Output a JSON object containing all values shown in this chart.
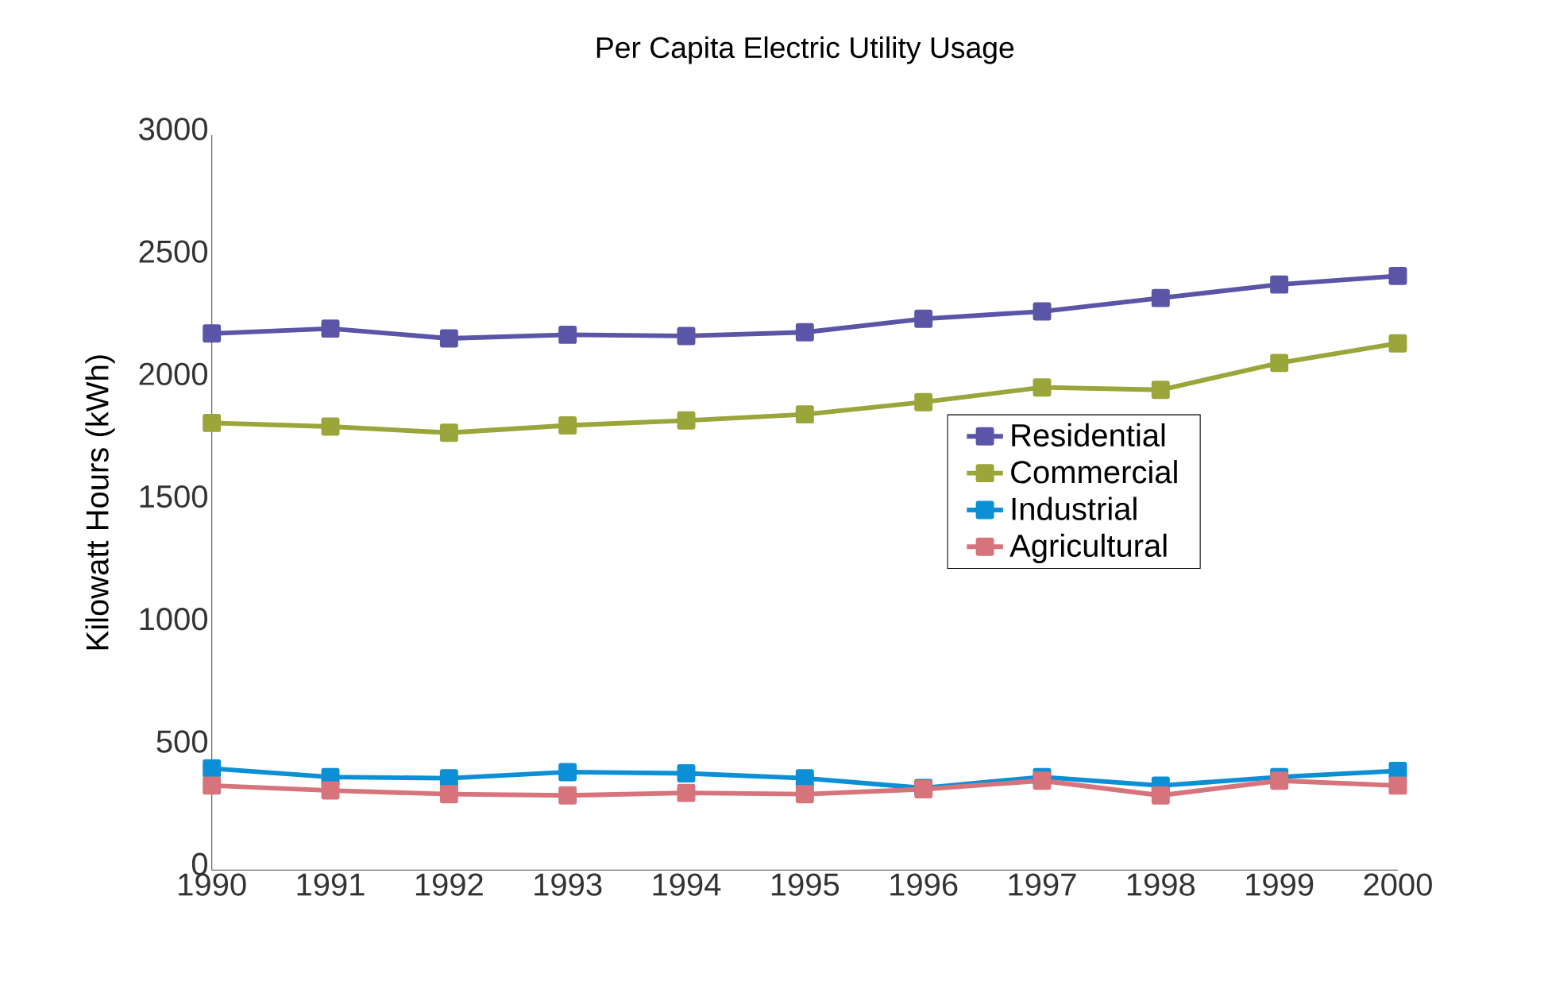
{
  "chart_data": {
    "type": "line",
    "title": "Per Capita Electric Utility Usage",
    "ylabel": "Kilowatt Hours (kWh)",
    "x": [
      1990,
      1991,
      1992,
      1993,
      1994,
      1995,
      1996,
      1997,
      1998,
      1999,
      2000
    ],
    "series": [
      {
        "name": "Residential",
        "color": "#5b55a8",
        "values": [
          2190,
          2210,
          2170,
          2185,
          2180,
          2195,
          2250,
          2280,
          2335,
          2390,
          2425
        ]
      },
      {
        "name": "Commercial",
        "color": "#9aa53a",
        "values": [
          1825,
          1810,
          1785,
          1815,
          1835,
          1860,
          1910,
          1970,
          1960,
          2070,
          2150
        ]
      },
      {
        "name": "Industrial",
        "color": "#0d8fd6",
        "values": [
          415,
          380,
          375,
          400,
          395,
          375,
          335,
          380,
          345,
          380,
          405
        ]
      },
      {
        "name": "Agricultural",
        "color": "#d7737b",
        "values": [
          345,
          325,
          310,
          305,
          315,
          310,
          330,
          365,
          305,
          365,
          345
        ]
      }
    ],
    "xlim": [
      1990,
      2000
    ],
    "xticks": [
      1990,
      1991,
      1992,
      1993,
      1994,
      1995,
      1996,
      1997,
      1998,
      1999,
      2000
    ],
    "ylim": [
      0,
      3000
    ],
    "yticks": [
      0,
      500,
      1000,
      1500,
      2000,
      2500,
      3000
    ],
    "grid": false,
    "legend": "right",
    "marker": "square",
    "line_style": "solid"
  }
}
